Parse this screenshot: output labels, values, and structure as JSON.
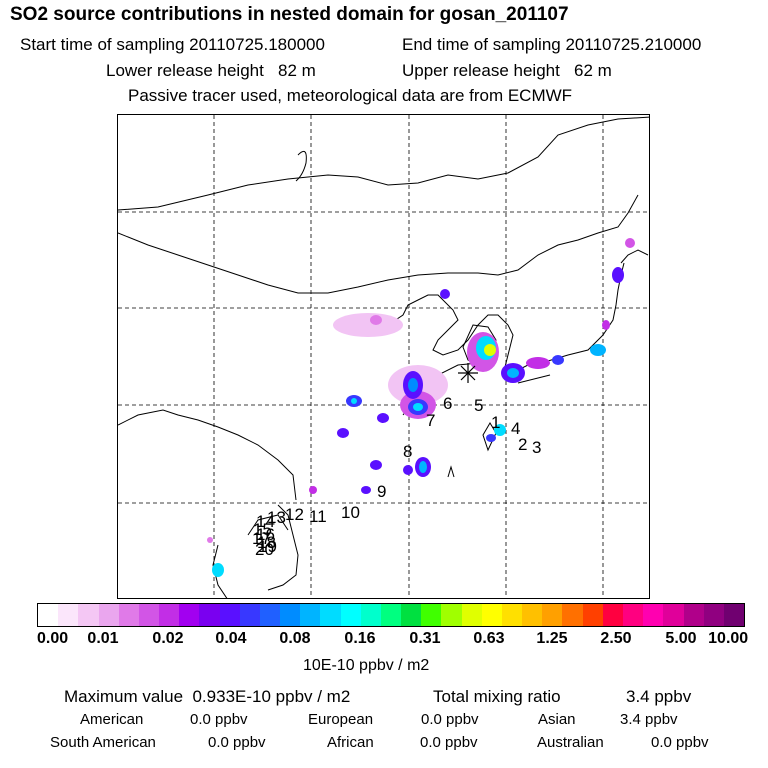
{
  "header": {
    "title": "SO2 source contributions in nested domain for gosan_201107",
    "start_label": "Start time of sampling 20110725.180000",
    "end_label": "End time of sampling 20110725.210000",
    "lower_label": "Lower release height   82 m",
    "upper_label": "Upper release height   62 m",
    "tracer_label": "Passive tracer used, meteorological data are from ECMWF"
  },
  "map": {
    "source_labels": [
      "1",
      "2",
      "3",
      "4",
      "5",
      "6",
      "7",
      "8",
      "9",
      "10",
      "11",
      "12",
      "13",
      "14",
      "15",
      "16",
      "17",
      "18",
      "19",
      "20"
    ],
    "receptor_marker": "star-icon"
  },
  "colorbar": {
    "tick_labels": [
      "0.00",
      "0.01",
      "0.02",
      "0.04",
      "0.08",
      "0.16",
      "0.31",
      "0.63",
      "1.25",
      "2.50",
      "5.00",
      "10.00"
    ],
    "unit": "10E-10 ppbv / m2",
    "colors": [
      "#ffffff",
      "#fbe6fb",
      "#f4c7f4",
      "#eaa6ee",
      "#e07ae8",
      "#d255e6",
      "#c22ee6",
      "#a200f0",
      "#7a00f0",
      "#5a10ff",
      "#3838ff",
      "#2060ff",
      "#008cff",
      "#00b4ff",
      "#00dcff",
      "#00ffff",
      "#00ffcc",
      "#00ff80",
      "#00e040",
      "#40ff00",
      "#a0ff00",
      "#e0ff00",
      "#ffff00",
      "#ffe000",
      "#ffc000",
      "#ffa000",
      "#ff7000",
      "#ff4000",
      "#ff0040",
      "#ff0080",
      "#ff00b0",
      "#e0009a",
      "#b0008a",
      "#900080",
      "#700070"
    ]
  },
  "footer": {
    "max_label": "Maximum value  0.933E-10 ppbv / m2",
    "total_label": "Total mixing ratio",
    "total_value": "3.4 ppbv",
    "american_label": "American",
    "american_value": "0.0 ppbv",
    "european_label": "European",
    "european_value": "0.0 ppbv",
    "asian_label": "Asian",
    "asian_value": "3.4 ppbv",
    "south_american_label": "South American",
    "south_american_value": "0.0 ppbv",
    "african_label": "African",
    "african_value": "0.0 ppbv",
    "australian_label": "Australian",
    "australian_value": "0.0 ppbv"
  }
}
